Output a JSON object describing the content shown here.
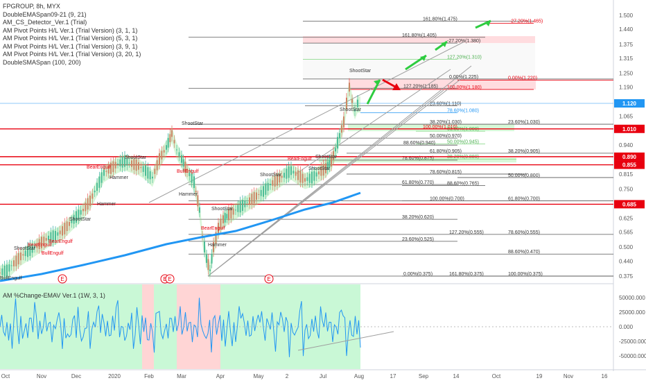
{
  "chart_data": {
    "type": "candlestick",
    "title": "FPGROUP, 8h, MYX",
    "indicators": [
      "DoubleEMASpan09-21 (9, 21)",
      "AM_CS_Detector_Ver.1 (Trial)",
      "AM Pivot Points H/L Ver.1 (Trial Version) (3, 1, 1)",
      "AM Pivot Points H/L Ver.1 (Trial Version) (5, 3, 1)",
      "AM Pivot Points H/L Ver.1 (Trial Version) (3, 9, 1)",
      "AM Pivot Points H/L Ver.1 (Trial Version) (3, 20, 1)",
      "DoubleSMASpan (100, 200)"
    ],
    "sub_indicator": "AM %Change-EMAV Ver.1 (1W, 3, 1)",
    "y_ticks": [
      "1.500",
      "1.440",
      "1.375",
      "1.315",
      "1.250",
      "1.190",
      "1.065",
      "0.940",
      "0.815",
      "0.750",
      "0.625",
      "0.565",
      "0.500",
      "0.440",
      "0.375"
    ],
    "sub_y_ticks": [
      "50000.000",
      "25000.000",
      "0.000",
      "-25000.000",
      "-50000.000"
    ],
    "x_ticks": [
      "Oct",
      "Nov",
      "Dec",
      "2020",
      "Feb",
      "Mar",
      "Apr",
      "May",
      "2",
      "Jul",
      "Aug",
      "17",
      "Sep",
      "14",
      "Oct",
      "19",
      "Nov",
      "16"
    ],
    "price_tags": [
      {
        "label": "1.120",
        "color": "#2196f3"
      },
      {
        "label": "1.010",
        "color": "#e8000f"
      },
      {
        "label": "0.890",
        "color": "#e8000f"
      },
      {
        "label": "0.855",
        "color": "#e8000f"
      },
      {
        "label": "0.685",
        "color": "#e8000f"
      }
    ],
    "fib_labels": [
      "161.80%(1.475)",
      "-27.20%(1.465)",
      "161.80%(1.405)",
      "-27.20%(1.380)",
      "127.20%(1.310)",
      "0.00%(1.225)",
      "0.00%(1.220)",
      "127.20%(1.185)",
      "100.00%(1.180)",
      "23.60%(1.110)",
      "78.60%(1.080)",
      "38.20%(1.030)",
      "23.60%(1.030)",
      "100.00%(1.010)",
      "61.80%(1.000)",
      "50.00%(0.970)",
      "50.00%(0.945)",
      "88.60%(0.940)",
      "61.80%(0.905)",
      "38.20%(0.905)",
      "78.60%(0.875)",
      "38.20%(0.880)",
      "78.60%(0.815)",
      "50.00%(0.800)",
      "61.80%(0.770)",
      "88.60%(0.765)",
      "100.00%(0.700)",
      "61.80%(0.700)",
      "38.20%(0.620)",
      "127.20%(0.555)",
      "78.60%(0.555)",
      "23.60%(0.525)",
      "88.60%(0.470)",
      "0.00%(0.375)",
      "161.80%(0.375)",
      "100.00%(0.375)"
    ],
    "pattern_labels": [
      "ShootStar",
      "BearEngulf",
      "BullEngulf",
      "Hammer"
    ],
    "event_marker": "E",
    "ylim": [
      0.36,
      1.56
    ],
    "colors": {
      "up": "#26a69a",
      "down": "#ef5350",
      "sma": "#2196f3",
      "bull_zone": "#b7f5c8",
      "bear_zone": "#ffc7c7"
    }
  }
}
